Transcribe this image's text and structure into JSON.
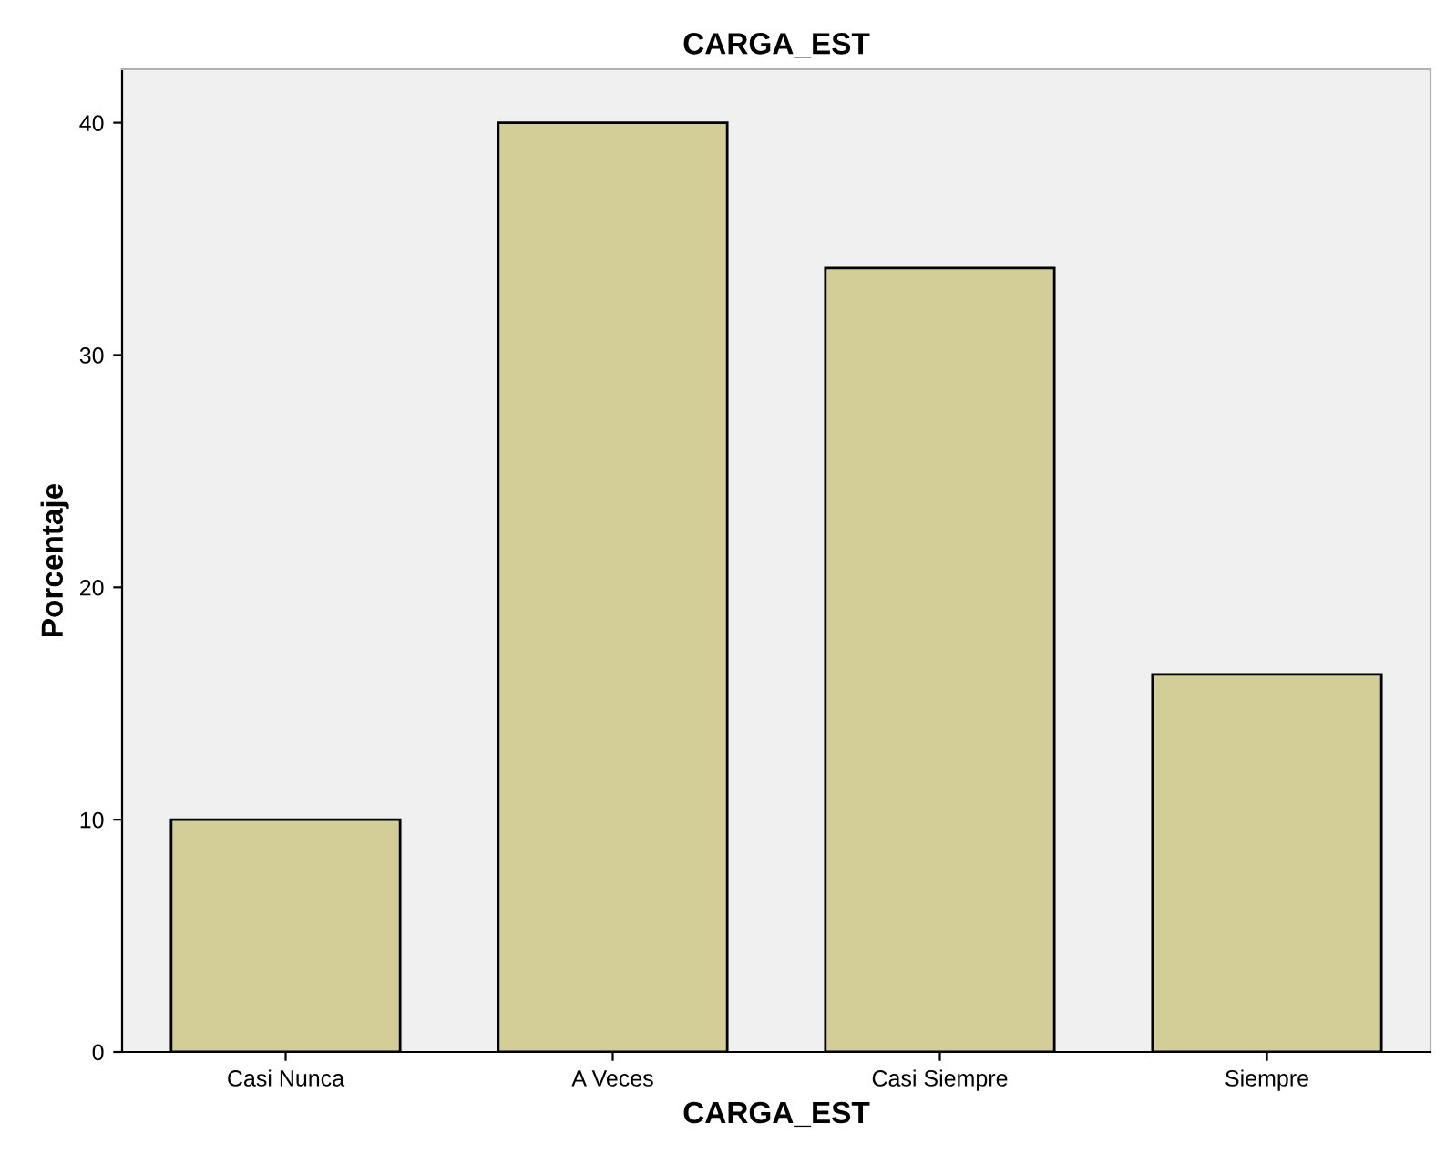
{
  "chart_data": {
    "type": "bar",
    "title": "CARGA_EST",
    "xlabel": "CARGA_EST",
    "ylabel": "Porcentaje",
    "categories": [
      "Casi Nunca",
      "A Veces",
      "Casi Siempre",
      "Siempre"
    ],
    "values": [
      10,
      40,
      33.75,
      16.25
    ],
    "color": "#d3ce97",
    "ylim": [
      0,
      42.3
    ],
    "yticks": [
      0,
      10,
      20,
      30,
      40
    ],
    "grid": false,
    "legend": false
  }
}
